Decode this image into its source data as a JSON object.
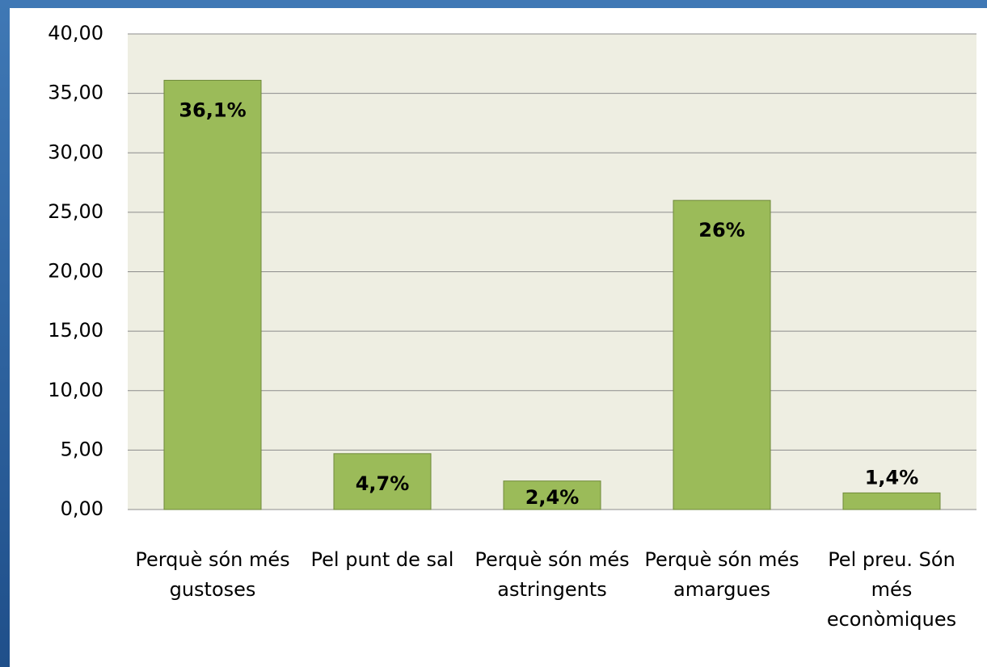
{
  "chart_data": {
    "type": "bar",
    "categories": [
      "Perquè són més gustoses",
      "Pel punt de sal",
      "Perquè són més astringents",
      "Perquè són més amargues",
      "Pel preu. Són més econòmiques"
    ],
    "values": [
      36.1,
      4.7,
      2.4,
      26,
      1.4
    ],
    "value_labels": [
      "36,1%",
      "4,7%",
      "2,4%",
      "26%",
      "1,4%"
    ],
    "color": "#9bbb59",
    "ylim": [
      0,
      40
    ],
    "yticks": [
      {
        "value": 0,
        "label": "0,00"
      },
      {
        "value": 5,
        "label": "5,00"
      },
      {
        "value": 10,
        "label": "10,00"
      },
      {
        "value": 15,
        "label": "15,00"
      },
      {
        "value": 20,
        "label": "20,00"
      },
      {
        "value": 25,
        "label": "25,00"
      },
      {
        "value": 30,
        "label": "30,00"
      },
      {
        "value": 35,
        "label": "35,00"
      },
      {
        "value": 40,
        "label": "40,00"
      }
    ],
    "grid": true
  }
}
